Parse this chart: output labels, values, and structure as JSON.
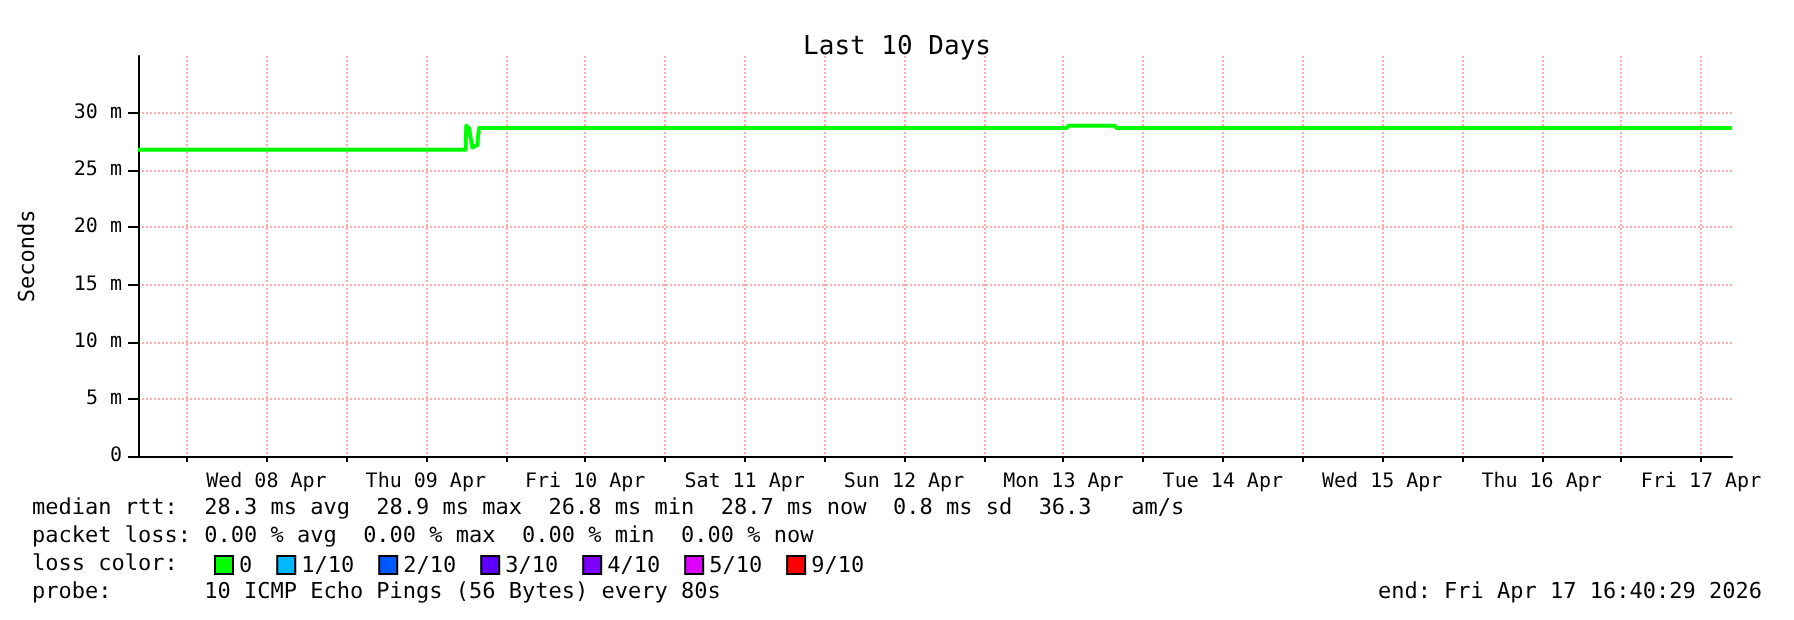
{
  "chart_data": {
    "type": "line",
    "title": "Last 10 Days",
    "ylabel": "Seconds",
    "x": [
      "2026-04-07T16:40",
      "2026-04-09T18:00",
      "2026-04-09T18:05",
      "2026-04-09T18:30",
      "2026-04-09T19:00",
      "2026-04-09T19:45",
      "2026-04-09T20:00",
      "2026-04-13T12:30",
      "2026-04-13T12:45",
      "2026-04-13T19:45",
      "2026-04-13T20:00",
      "2026-04-17T16:40"
    ],
    "series": [
      {
        "name": "0",
        "color": "#00ff00",
        "values": [
          26.8,
          26.8,
          28.9,
          28.7,
          27.0,
          27.2,
          28.7,
          28.7,
          28.9,
          28.9,
          28.7,
          28.7
        ]
      },
      {
        "name": "1/10",
        "color": "#00b8ff",
        "values": [
          null,
          null,
          null,
          null,
          null,
          null,
          null,
          null,
          null,
          null,
          null,
          null
        ]
      },
      {
        "name": "2/10",
        "color": "#0059ff",
        "values": [
          null,
          null,
          null,
          null,
          null,
          null,
          null,
          null,
          null,
          null,
          null,
          null
        ]
      },
      {
        "name": "3/10",
        "color": "#5e00ff",
        "values": [
          null,
          null,
          null,
          null,
          null,
          null,
          null,
          null,
          null,
          null,
          null,
          null
        ]
      },
      {
        "name": "4/10",
        "color": "#7e00ff",
        "values": [
          null,
          null,
          null,
          null,
          null,
          null,
          null,
          null,
          null,
          null,
          null,
          null
        ]
      },
      {
        "name": "5/10",
        "color": "#dd00ff",
        "values": [
          null,
          null,
          null,
          null,
          null,
          null,
          null,
          null,
          null,
          null,
          null,
          null
        ]
      },
      {
        "name": "9/10",
        "color": "#ff0000",
        "values": [
          null,
          null,
          null,
          null,
          null,
          null,
          null,
          null,
          null,
          null,
          null,
          null
        ]
      }
    ],
    "xlim": [
      "2026-04-07T16:40",
      "2026-04-17T16:40"
    ],
    "xticks": [
      {
        "value": "2026-04-08T00:00",
        "label": null
      },
      {
        "value": "2026-04-08T12:00",
        "label": "Wed 08 Apr"
      },
      {
        "value": "2026-04-09T00:00",
        "label": null
      },
      {
        "value": "2026-04-09T12:00",
        "label": "Thu 09 Apr"
      },
      {
        "value": "2026-04-10T00:00",
        "label": null
      },
      {
        "value": "2026-04-10T12:00",
        "label": "Fri 10 Apr"
      },
      {
        "value": "2026-04-11T00:00",
        "label": null
      },
      {
        "value": "2026-04-11T12:00",
        "label": "Sat 11 Apr"
      },
      {
        "value": "2026-04-12T00:00",
        "label": null
      },
      {
        "value": "2026-04-12T12:00",
        "label": "Sun 12 Apr"
      },
      {
        "value": "2026-04-13T00:00",
        "label": null
      },
      {
        "value": "2026-04-13T12:00",
        "label": "Mon 13 Apr"
      },
      {
        "value": "2026-04-14T00:00",
        "label": null
      },
      {
        "value": "2026-04-14T12:00",
        "label": "Tue 14 Apr"
      },
      {
        "value": "2026-04-15T00:00",
        "label": null
      },
      {
        "value": "2026-04-15T12:00",
        "label": "Wed 15 Apr"
      },
      {
        "value": "2026-04-16T00:00",
        "label": null
      },
      {
        "value": "2026-04-16T12:00",
        "label": "Thu 16 Apr"
      },
      {
        "value": "2026-04-17T00:00",
        "label": null
      },
      {
        "value": "2026-04-17T12:00",
        "label": "Fri 17 Apr"
      }
    ],
    "ylim": [
      0,
      35
    ],
    "yticks": [
      0,
      {
        "value": 5,
        "label": "5 m"
      },
      {
        "value": 10,
        "label": "10 m"
      },
      {
        "value": 15,
        "label": "15 m"
      },
      {
        "value": 20,
        "label": "20 m"
      },
      {
        "value": 25,
        "label": "25 m"
      },
      {
        "value": 30,
        "label": "30 m"
      }
    ],
    "grid": true,
    "legend": "bottom left",
    "marker": "none",
    "line_style": "solid",
    "annotations": [
      "median rtt:  28.3 ms avg  28.9 ms max  26.8 ms min  28.7 ms now  0.8 ms sd  36.3   am/s",
      "packet loss: 0.00 % avg  0.00 % max  0.00 % min  0.00 % now",
      "loss color:",
      "probe:       10 ICMP Echo Pings (56 Bytes) every 80s",
      "end: Fri Apr 17 16:40:29 2026"
    ]
  }
}
